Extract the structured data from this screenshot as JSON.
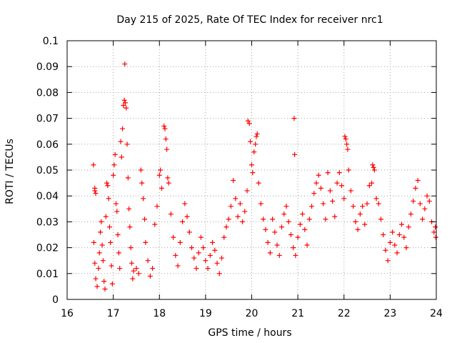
{
  "chart_data": {
    "type": "scatter",
    "title": "Day 215 of 2025, Rate Of TEC Index for receiver nrc1",
    "xlabel": "GPS time / hours",
    "ylabel": "ROTI / TECUs",
    "xlim": [
      16,
      24
    ],
    "ylim": [
      0,
      0.1
    ],
    "x_ticks": [
      16,
      17,
      18,
      19,
      20,
      21,
      22,
      23,
      24
    ],
    "x_tick_labels": [
      "16",
      "17",
      "18",
      "19",
      "20",
      "21",
      "22",
      "23",
      "24"
    ],
    "y_ticks": [
      0,
      0.01,
      0.02,
      0.03,
      0.04,
      0.05,
      0.06,
      0.07,
      0.08,
      0.09,
      0.1
    ],
    "y_tick_labels": [
      "0",
      "0.01",
      "0.02",
      "0.03",
      "0.04",
      "0.05",
      "0.06",
      "0.07",
      "0.08",
      "0.09",
      "0.1"
    ],
    "grid": true,
    "marker": "+",
    "colors": {
      "series": "#ff0000",
      "grid": "#a0a0a0",
      "axis": "#000000"
    },
    "series": [
      {
        "points": [
          [
            16.57,
            0.052
          ],
          [
            16.6,
            0.043
          ],
          [
            16.6,
            0.042
          ],
          [
            16.62,
            0.041
          ],
          [
            16.58,
            0.022
          ],
          [
            16.6,
            0.014
          ],
          [
            16.62,
            0.008
          ],
          [
            16.65,
            0.005
          ],
          [
            16.68,
            0.012
          ],
          [
            16.7,
            0.018
          ],
          [
            16.72,
            0.026
          ],
          [
            16.74,
            0.03
          ],
          [
            16.76,
            0.021
          ],
          [
            16.78,
            0.015
          ],
          [
            16.8,
            0.007
          ],
          [
            16.82,
            0.004
          ],
          [
            16.84,
            0.032
          ],
          [
            16.86,
            0.045
          ],
          [
            16.88,
            0.044
          ],
          [
            16.9,
            0.039
          ],
          [
            16.92,
            0.028
          ],
          [
            16.94,
            0.022
          ],
          [
            16.96,
            0.013
          ],
          [
            16.98,
            0.006
          ],
          [
            17.0,
            0.048
          ],
          [
            17.02,
            0.052
          ],
          [
            17.04,
            0.056
          ],
          [
            17.06,
            0.037
          ],
          [
            17.08,
            0.034
          ],
          [
            17.1,
            0.025
          ],
          [
            17.12,
            0.018
          ],
          [
            17.14,
            0.012
          ],
          [
            17.16,
            0.061
          ],
          [
            17.18,
            0.055
          ],
          [
            17.2,
            0.066
          ],
          [
            17.22,
            0.075
          ],
          [
            17.24,
            0.077
          ],
          [
            17.26,
            0.076
          ],
          [
            17.28,
            0.074
          ],
          [
            17.25,
            0.091
          ],
          [
            17.3,
            0.06
          ],
          [
            17.32,
            0.047
          ],
          [
            17.34,
            0.035
          ],
          [
            17.36,
            0.028
          ],
          [
            17.38,
            0.02
          ],
          [
            17.4,
            0.014
          ],
          [
            17.42,
            0.008
          ],
          [
            17.44,
            0.011
          ],
          [
            17.5,
            0.012
          ],
          [
            17.55,
            0.01
          ],
          [
            17.6,
            0.05
          ],
          [
            17.62,
            0.045
          ],
          [
            17.65,
            0.039
          ],
          [
            17.68,
            0.031
          ],
          [
            17.7,
            0.022
          ],
          [
            17.75,
            0.015
          ],
          [
            17.8,
            0.009
          ],
          [
            17.85,
            0.012
          ],
          [
            17.9,
            0.029
          ],
          [
            17.95,
            0.036
          ],
          [
            18.0,
            0.048
          ],
          [
            18.02,
            0.05
          ],
          [
            18.05,
            0.043
          ],
          [
            18.1,
            0.067
          ],
          [
            18.12,
            0.066
          ],
          [
            18.14,
            0.062
          ],
          [
            18.16,
            0.058
          ],
          [
            18.18,
            0.047
          ],
          [
            18.2,
            0.045
          ],
          [
            18.25,
            0.033
          ],
          [
            18.3,
            0.024
          ],
          [
            18.35,
            0.017
          ],
          [
            18.4,
            0.013
          ],
          [
            18.45,
            0.022
          ],
          [
            18.5,
            0.03
          ],
          [
            18.55,
            0.037
          ],
          [
            18.6,
            0.032
          ],
          [
            18.65,
            0.026
          ],
          [
            18.7,
            0.02
          ],
          [
            18.75,
            0.016
          ],
          [
            18.8,
            0.012
          ],
          [
            18.85,
            0.018
          ],
          [
            18.9,
            0.024
          ],
          [
            18.95,
            0.02
          ],
          [
            19.0,
            0.015
          ],
          [
            19.05,
            0.012
          ],
          [
            19.1,
            0.017
          ],
          [
            19.15,
            0.022
          ],
          [
            19.2,
            0.019
          ],
          [
            19.25,
            0.014
          ],
          [
            19.3,
            0.01
          ],
          [
            19.35,
            0.016
          ],
          [
            19.4,
            0.024
          ],
          [
            19.45,
            0.028
          ],
          [
            19.5,
            0.031
          ],
          [
            19.55,
            0.036
          ],
          [
            19.6,
            0.046
          ],
          [
            19.65,
            0.039
          ],
          [
            19.7,
            0.032
          ],
          [
            19.75,
            0.037
          ],
          [
            19.8,
            0.03
          ],
          [
            19.85,
            0.034
          ],
          [
            19.9,
            0.042
          ],
          [
            19.92,
            0.069
          ],
          [
            19.95,
            0.068
          ],
          [
            19.97,
            0.061
          ],
          [
            20.0,
            0.052
          ],
          [
            20.02,
            0.049
          ],
          [
            20.05,
            0.057
          ],
          [
            20.08,
            0.06
          ],
          [
            20.1,
            0.063
          ],
          [
            20.12,
            0.064
          ],
          [
            20.15,
            0.045
          ],
          [
            20.2,
            0.037
          ],
          [
            20.25,
            0.031
          ],
          [
            20.3,
            0.027
          ],
          [
            20.35,
            0.022
          ],
          [
            20.4,
            0.018
          ],
          [
            20.45,
            0.031
          ],
          [
            20.5,
            0.026
          ],
          [
            20.55,
            0.021
          ],
          [
            20.6,
            0.017
          ],
          [
            20.65,
            0.028
          ],
          [
            20.7,
            0.033
          ],
          [
            20.75,
            0.036
          ],
          [
            20.8,
            0.03
          ],
          [
            20.85,
            0.025
          ],
          [
            20.9,
            0.02
          ],
          [
            20.92,
            0.07
          ],
          [
            20.93,
            0.056
          ],
          [
            20.95,
            0.017
          ],
          [
            21.0,
            0.024
          ],
          [
            21.05,
            0.029
          ],
          [
            21.1,
            0.033
          ],
          [
            21.15,
            0.027
          ],
          [
            21.2,
            0.021
          ],
          [
            21.25,
            0.031
          ],
          [
            21.3,
            0.036
          ],
          [
            21.35,
            0.041
          ],
          [
            21.4,
            0.045
          ],
          [
            21.45,
            0.048
          ],
          [
            21.5,
            0.043
          ],
          [
            21.55,
            0.037
          ],
          [
            21.6,
            0.031
          ],
          [
            21.65,
            0.049
          ],
          [
            21.7,
            0.042
          ],
          [
            21.75,
            0.038
          ],
          [
            21.8,
            0.032
          ],
          [
            21.85,
            0.045
          ],
          [
            21.9,
            0.049
          ],
          [
            21.95,
            0.044
          ],
          [
            22.0,
            0.039
          ],
          [
            22.02,
            0.063
          ],
          [
            22.04,
            0.062
          ],
          [
            22.06,
            0.06
          ],
          [
            22.08,
            0.058
          ],
          [
            22.1,
            0.05
          ],
          [
            22.15,
            0.042
          ],
          [
            22.2,
            0.036
          ],
          [
            22.25,
            0.03
          ],
          [
            22.3,
            0.027
          ],
          [
            22.35,
            0.033
          ],
          [
            22.4,
            0.036
          ],
          [
            22.45,
            0.029
          ],
          [
            22.5,
            0.037
          ],
          [
            22.55,
            0.044
          ],
          [
            22.6,
            0.045
          ],
          [
            22.62,
            0.052
          ],
          [
            22.64,
            0.051
          ],
          [
            22.66,
            0.05
          ],
          [
            22.7,
            0.039
          ],
          [
            22.75,
            0.037
          ],
          [
            22.8,
            0.031
          ],
          [
            22.85,
            0.025
          ],
          [
            22.9,
            0.019
          ],
          [
            22.95,
            0.015
          ],
          [
            23.0,
            0.022
          ],
          [
            23.05,
            0.026
          ],
          [
            23.1,
            0.021
          ],
          [
            23.15,
            0.018
          ],
          [
            23.2,
            0.025
          ],
          [
            23.25,
            0.029
          ],
          [
            23.3,
            0.024
          ],
          [
            23.35,
            0.02
          ],
          [
            23.4,
            0.028
          ],
          [
            23.45,
            0.033
          ],
          [
            23.5,
            0.038
          ],
          [
            23.55,
            0.043
          ],
          [
            23.6,
            0.046
          ],
          [
            23.65,
            0.037
          ],
          [
            23.7,
            0.031
          ],
          [
            23.75,
            0.035
          ],
          [
            23.8,
            0.04
          ],
          [
            23.85,
            0.038
          ],
          [
            23.9,
            0.03
          ],
          [
            23.95,
            0.026
          ],
          [
            23.98,
            0.028
          ],
          [
            23.99,
            0.024
          ]
        ]
      }
    ]
  }
}
